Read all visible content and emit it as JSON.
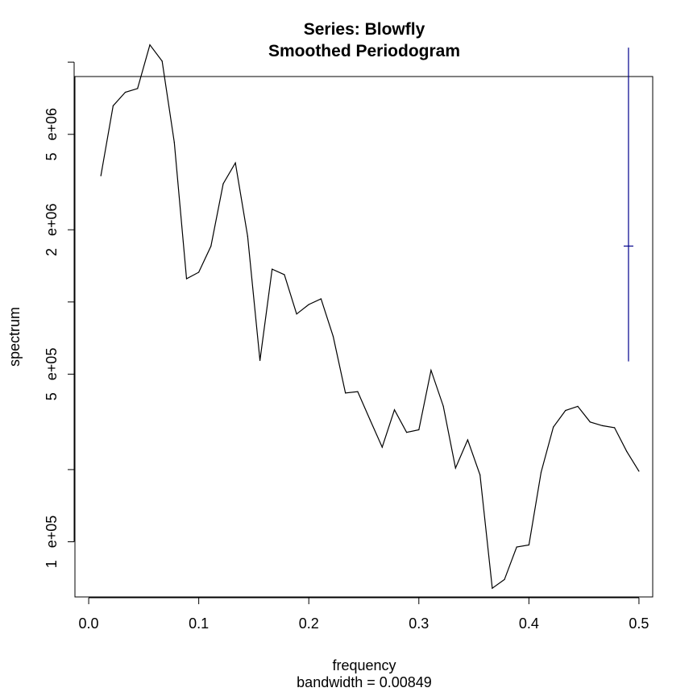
{
  "chart_data": {
    "type": "line",
    "title": "Series: Blowfly",
    "subtitle": "Smoothed Periodogram",
    "xlabel": "frequency",
    "sub_xlabel": "bandwidth = 0.00849",
    "ylabel": "spectrum",
    "log_y": true,
    "xlim": [
      -0.0125,
      0.5125
    ],
    "ylim_log10": [
      4.77,
      6.94
    ],
    "x_ticks": [
      0.0,
      0.1,
      0.2,
      0.3,
      0.4,
      0.5
    ],
    "x_tick_labels": [
      "0.0",
      "0.1",
      "0.2",
      "0.3",
      "0.4",
      "0.5"
    ],
    "y_labeled_ticks": [
      {
        "value": 100000,
        "label": "1   e+05"
      },
      {
        "value": 500000,
        "label": "5   e+05"
      },
      {
        "value": 2000000,
        "label": "2   e+06"
      },
      {
        "value": 5000000,
        "label": "5   e+06"
      }
    ],
    "y_minor_ticks": [
      200000,
      1000000,
      10000000
    ],
    "series": [
      {
        "color": "#000000",
        "x": [
          0.0111,
          0.0222,
          0.0333,
          0.0444,
          0.0556,
          0.0667,
          0.0778,
          0.0889,
          0.1,
          0.1111,
          0.1222,
          0.1333,
          0.1444,
          0.1556,
          0.1667,
          0.1778,
          0.1889,
          0.2,
          0.2111,
          0.2222,
          0.2333,
          0.2444,
          0.2556,
          0.2667,
          0.2778,
          0.2889,
          0.3,
          0.3111,
          0.3222,
          0.3333,
          0.3444,
          0.3556,
          0.3667,
          0.3778,
          0.3889,
          0.4,
          0.4111,
          0.4222,
          0.4333,
          0.4444,
          0.4556,
          0.4667,
          0.4778,
          0.4889,
          0.5
        ],
        "y": [
          3360000,
          6580000,
          7490000,
          7760000,
          11800000,
          10100000,
          4630000,
          1250000,
          1330000,
          1710000,
          3110000,
          3800000,
          1880000,
          570000,
          1370000,
          1300000,
          891000,
          976000,
          1030000,
          718000,
          417000,
          423000,
          323000,
          248000,
          355000,
          286000,
          293000,
          519000,
          368000,
          203000,
          266000,
          190000,
          64000,
          69600,
          95100,
          97000,
          195000,
          301000,
          353000,
          367000,
          316000,
          305000,
          299000,
          238000,
          197000
        ]
      }
    ],
    "confidence_bar": {
      "color": "#00008B",
      "x": 0.4905,
      "center": 1710000,
      "lower": 565000,
      "upper": 11500000
    }
  }
}
